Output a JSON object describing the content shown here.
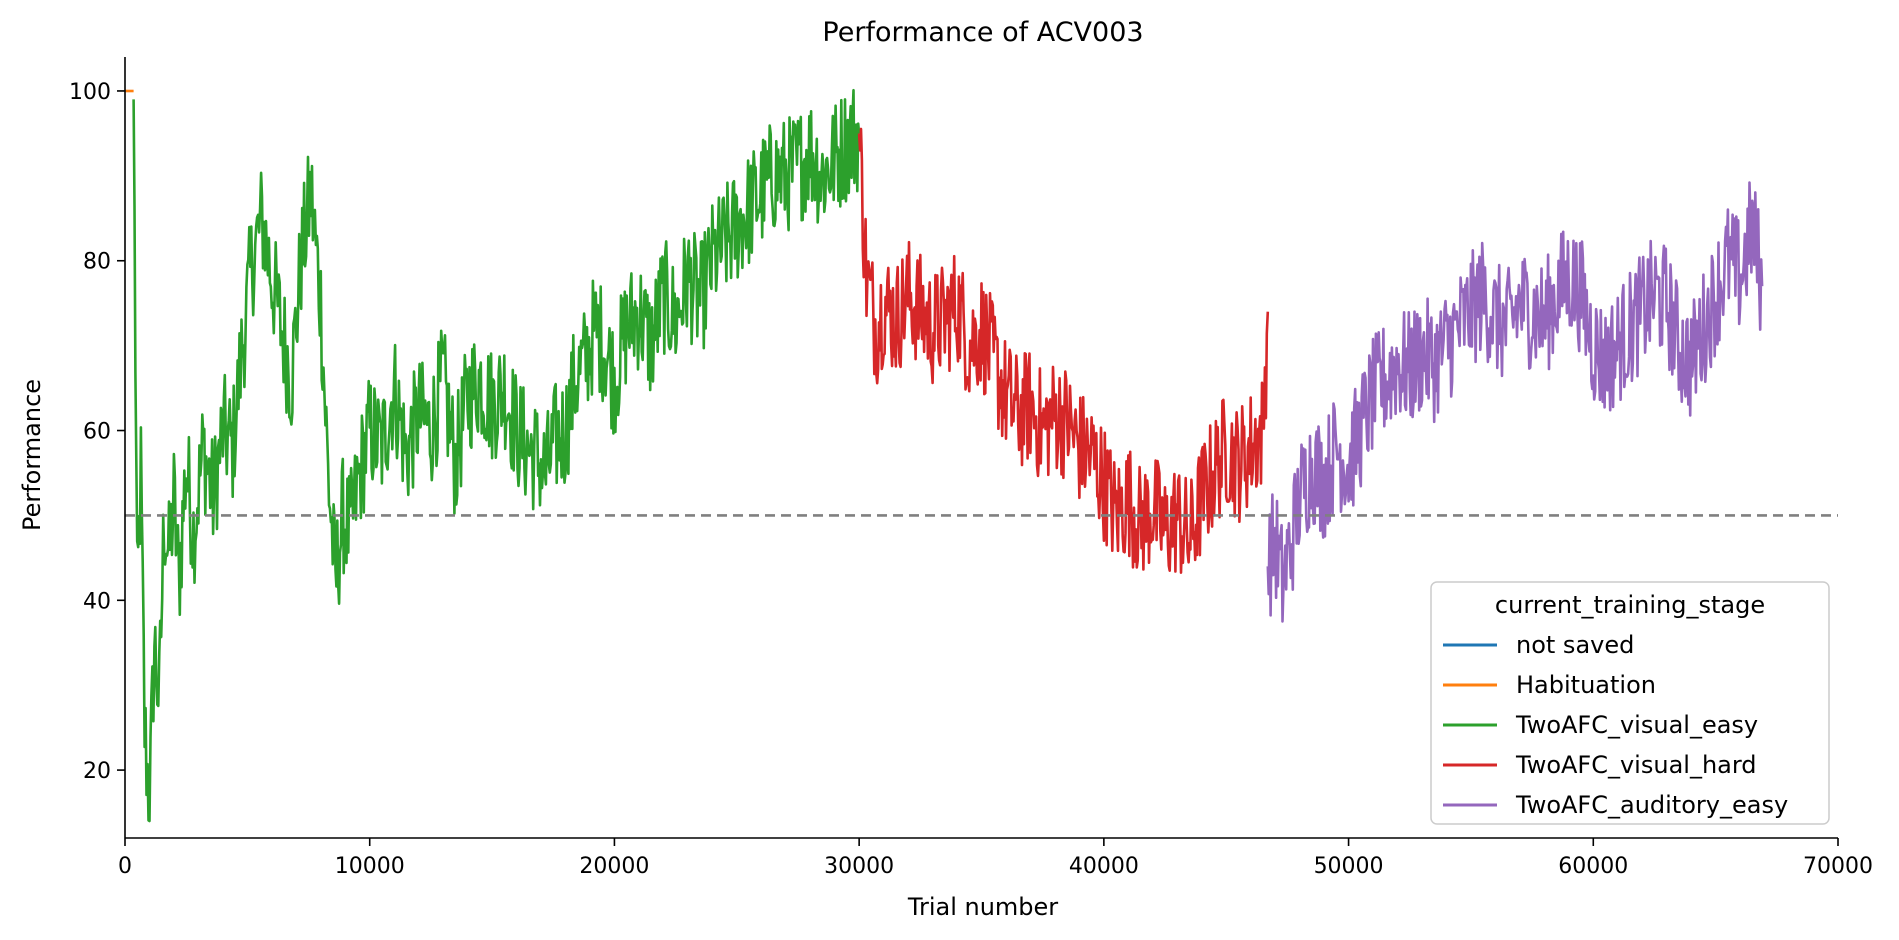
{
  "chart_data": {
    "type": "line",
    "title": "Performance of ACV003",
    "xlabel": "Trial number",
    "ylabel": "Performance",
    "xlim": [
      0,
      70000
    ],
    "ylim": [
      12,
      104
    ],
    "xticks": [
      0,
      10000,
      20000,
      30000,
      40000,
      50000,
      60000,
      70000
    ],
    "xtick_labels": [
      "0",
      "10000",
      "20000",
      "30000",
      "40000",
      "50000",
      "60000",
      "70000"
    ],
    "yticks": [
      20,
      40,
      60,
      80,
      100
    ],
    "ytick_labels": [
      "20",
      "40",
      "60",
      "80",
      "100"
    ],
    "grid": false,
    "reference_line": {
      "y": 50,
      "style": "dashed",
      "color": "#808080"
    },
    "legend": {
      "title": "current_training_stage",
      "placement": "lower-right",
      "entries": [
        "not saved",
        "Habituation",
        "TwoAFC_visual_easy",
        "TwoAFC_visual_hard",
        "TwoAFC_auditory_easy"
      ]
    },
    "series": [
      {
        "name": "not saved",
        "color": "#1f77b4",
        "x": [],
        "y": []
      },
      {
        "name": "Habituation",
        "color": "#ff7f0e",
        "x": [
          0,
          200,
          350
        ],
        "y": [
          100,
          100,
          100
        ]
      },
      {
        "name": "TwoAFC_visual_easy",
        "color": "#2ca02c",
        "x": [
          350,
          500,
          650,
          800,
          1000,
          1200,
          1400,
          1600,
          1800,
          2000,
          2200,
          2500,
          2800,
          3200,
          3600,
          4000,
          4400,
          4800,
          5200,
          5600,
          6000,
          6400,
          6800,
          7200,
          7600,
          8000,
          8300,
          8600,
          8900,
          9200,
          9600,
          10000,
          10500,
          11000,
          11500,
          12000,
          12500,
          13000,
          13500,
          14000,
          14500,
          15000,
          15500,
          16000,
          16400,
          16800,
          17200,
          17600,
          18000,
          18400,
          18800,
          19200,
          19600,
          20000,
          20500,
          21000,
          21500,
          22000,
          22500,
          23000,
          23500,
          24000,
          24500,
          25000,
          25500,
          26000,
          26500,
          27000,
          27500,
          28000,
          28500,
          29000,
          29500,
          30000
        ],
        "y": [
          99,
          40,
          55,
          25,
          16,
          35,
          28,
          50,
          45,
          52,
          42,
          56,
          48,
          58,
          52,
          60,
          58,
          70,
          80,
          85,
          78,
          72,
          66,
          80,
          88,
          75,
          55,
          42,
          50,
          48,
          55,
          60,
          58,
          65,
          57,
          62,
          60,
          66,
          56,
          64,
          66,
          63,
          65,
          60,
          58,
          57,
          55,
          59,
          60,
          66,
          68,
          72,
          70,
          66,
          72,
          74,
          70,
          76,
          73,
          78,
          75,
          80,
          82,
          84,
          86,
          88,
          90,
          90,
          91,
          93,
          90,
          92,
          94,
          95
        ]
      },
      {
        "name": "TwoAFC_visual_hard",
        "color": "#d62728",
        "x": [
          30000,
          30300,
          30700,
          31000,
          31500,
          32000,
          32500,
          33000,
          33500,
          34000,
          34500,
          35000,
          35500,
          36000,
          36500,
          37000,
          37500,
          38000,
          38500,
          39000,
          39500,
          40000,
          40500,
          41000,
          41500,
          42000,
          42500,
          43000,
          43500,
          44000,
          44500,
          45000,
          45500,
          46000,
          46500,
          46700
        ],
        "y": [
          95,
          78,
          72,
          75,
          73,
          76,
          74,
          72,
          73,
          75,
          70,
          72,
          68,
          64,
          62,
          63,
          60,
          62,
          61,
          58,
          57,
          54,
          50,
          52,
          49,
          51,
          48,
          50,
          47,
          52,
          55,
          58,
          56,
          58,
          60,
          74
        ]
      },
      {
        "name": "TwoAFC_auditory_easy",
        "color": "#9467bd",
        "x": [
          46700,
          47000,
          47300,
          47600,
          48000,
          48500,
          49000,
          49500,
          50000,
          50500,
          51000,
          51500,
          52000,
          52500,
          53000,
          53500,
          54000,
          54500,
          55000,
          55500,
          56000,
          56500,
          57000,
          57500,
          58000,
          58500,
          59000,
          59500,
          60000,
          60500,
          61000,
          61500,
          62000,
          62500,
          63000,
          63500,
          64000,
          64500,
          65000,
          65500,
          66000,
          66500,
          66900
        ],
        "y": [
          44,
          47,
          42,
          46,
          52,
          56,
          54,
          58,
          56,
          60,
          64,
          66,
          68,
          67,
          69,
          68,
          70,
          72,
          74,
          76,
          73,
          72,
          75,
          74,
          73,
          76,
          78,
          76,
          70,
          68,
          70,
          72,
          74,
          76,
          75,
          70,
          68,
          72,
          76,
          80,
          78,
          84,
          77
        ]
      }
    ]
  }
}
